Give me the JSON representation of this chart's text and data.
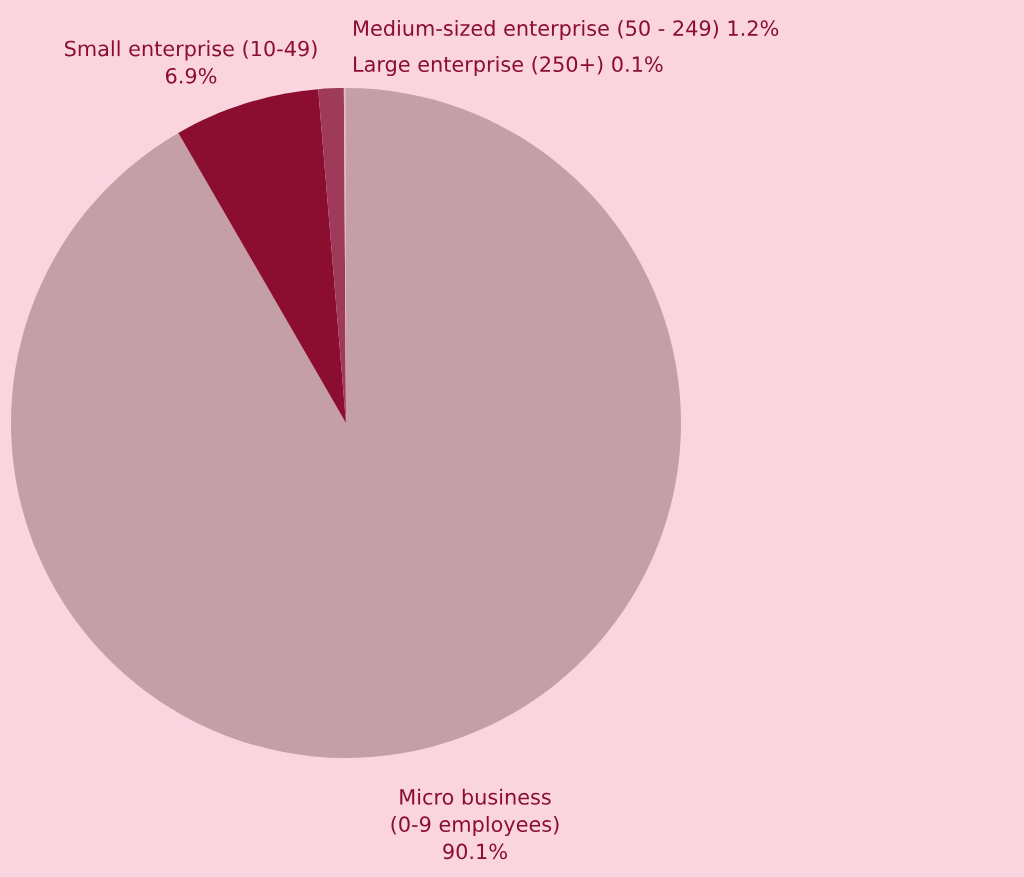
{
  "chart_data": {
    "type": "pie",
    "categories": [
      "Micro business\n(0-9 employees)",
      "Small enterprise (10-49)",
      "Medium-sized enterprise (50 - 249)",
      "Large enterprise (250+)"
    ],
    "values": [
      90.1,
      6.9,
      1.2,
      0.1
    ],
    "colors": [
      "#c49fa8",
      "#8b0e30",
      "#a03a5a",
      "#e0b8c4"
    ],
    "value_labels": [
      "90.1%",
      "6.9%",
      "1.2%",
      "0.1%"
    ]
  }
}
